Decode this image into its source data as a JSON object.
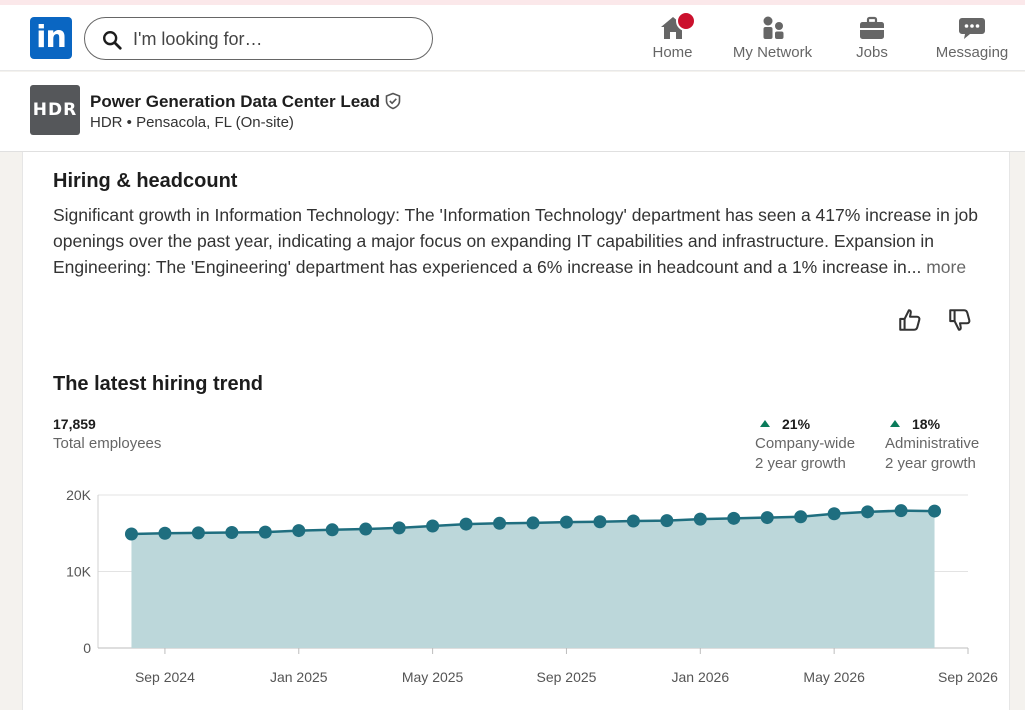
{
  "nav": {
    "logo_text": "in",
    "search_placeholder": "I'm looking for…",
    "items": [
      {
        "label": "Home"
      },
      {
        "label": "My Network"
      },
      {
        "label": "Jobs"
      },
      {
        "label": "Messaging"
      }
    ]
  },
  "job": {
    "company_logo_text": "HDR",
    "title": "Power Generation Data Center Lead",
    "subtitle": "HDR • Pensacola, FL (On-site)"
  },
  "hiring": {
    "heading": "Hiring & headcount",
    "summary": "Significant growth in Information Technology: The 'Information Technology' department has seen a 417% increase in job openings over the past year, indicating a major focus on expanding IT capabilities and infrastructure. Expansion in Engineering: The 'Engineering' department has experienced a 6% increase in headcount and a 1% increase in...",
    "more_label": "more"
  },
  "trend": {
    "heading": "The latest hiring trend",
    "total_value": "17,859",
    "total_label": "Total employees",
    "stats": [
      {
        "value": "21%",
        "line1": "Company-wide",
        "line2": "2 year growth"
      },
      {
        "value": "18%",
        "line1": "Administrative",
        "line2": "2 year growth"
      }
    ]
  },
  "chart_data": {
    "type": "area",
    "x": [
      "2024-08",
      "2024-09",
      "2024-10",
      "2024-11",
      "2024-12",
      "2025-01",
      "2025-02",
      "2025-03",
      "2025-04",
      "2025-05",
      "2025-06",
      "2025-07",
      "2025-08",
      "2025-09",
      "2025-10",
      "2025-11",
      "2025-12",
      "2026-01",
      "2026-02",
      "2026-03",
      "2026-04",
      "2026-05",
      "2026-06",
      "2026-07",
      "2026-08"
    ],
    "values": [
      14900,
      15000,
      15050,
      15100,
      15150,
      15350,
      15450,
      15550,
      15700,
      15950,
      16200,
      16300,
      16350,
      16450,
      16500,
      16600,
      16650,
      16850,
      16950,
      17050,
      17150,
      17550,
      17800,
      17950,
      17900
    ],
    "y_ticks": [
      {
        "value": 0,
        "label": "0"
      },
      {
        "value": 10000,
        "label": "10K"
      },
      {
        "value": 20000,
        "label": "20K"
      }
    ],
    "x_ticks": [
      {
        "x": "2024-09",
        "label": "Sep 2024"
      },
      {
        "x": "2025-01",
        "label": "Jan 2025"
      },
      {
        "x": "2025-05",
        "label": "May 2025"
      },
      {
        "x": "2025-09",
        "label": "Sep 2025"
      },
      {
        "x": "2026-01",
        "label": "Jan 2026"
      },
      {
        "x": "2026-05",
        "label": "May 2026"
      },
      {
        "x": "2026-09",
        "label": "Sep 2026"
      }
    ],
    "x_range": [
      "2024-07",
      "2026-09"
    ],
    "ylim": [
      0,
      20000
    ],
    "grid": true,
    "line_color": "#1f6e7f",
    "fill_color": "#bcd7da"
  }
}
